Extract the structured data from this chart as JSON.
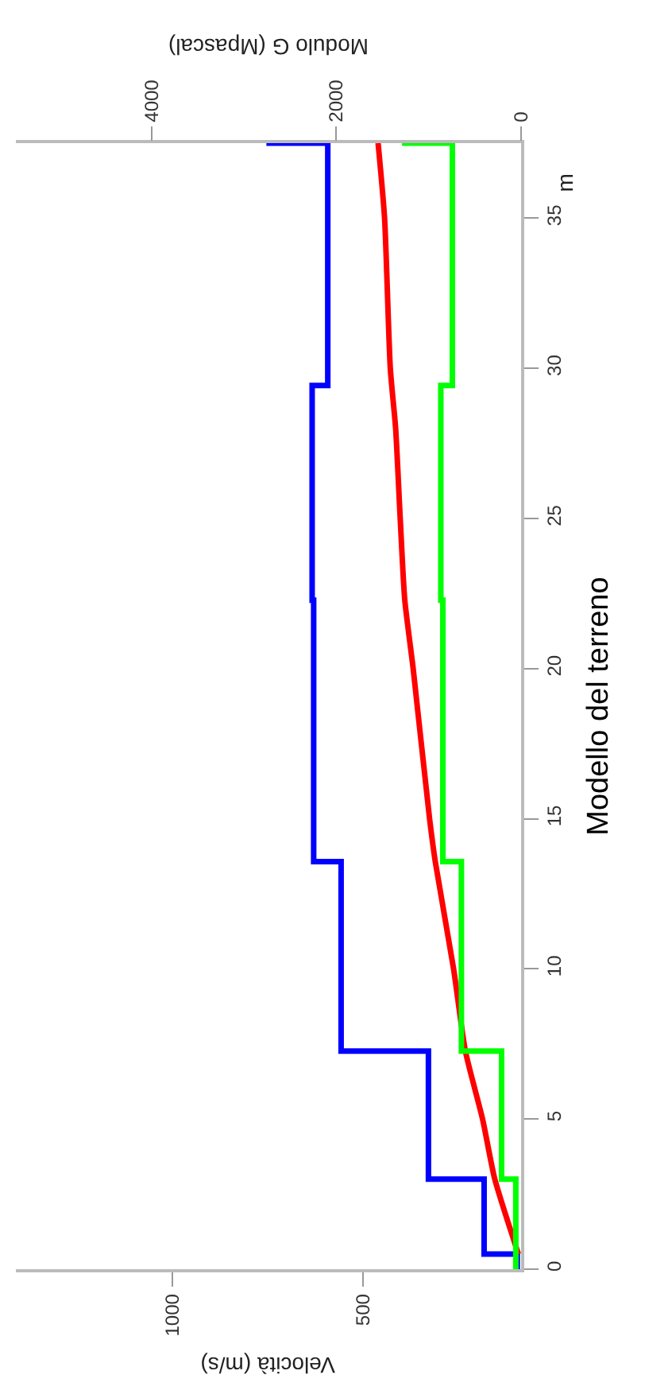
{
  "chart_data": {
    "type": "step",
    "xlabel": "Velocità (m/s)",
    "x2label": "Modulo G (Mpascal)",
    "ylabel": "Modello del terreno",
    "annotations": [
      "m"
    ],
    "xlim": [
      1410,
      85
    ],
    "xticks": [
      1000,
      500
    ],
    "x2lim": [
      5470,
      0
    ],
    "x2ticks": [
      4000,
      2000,
      0
    ],
    "ylim": [
      0,
      37.5
    ],
    "yticks": [
      0,
      5,
      10,
      15,
      20,
      25,
      30,
      35
    ],
    "grid": false,
    "marker": "none",
    "line_style": "solid",
    "series": [
      {
        "color": "#0000ff",
        "x": [
          95,
          182,
          328,
          557,
          629,
          633,
          592,
          753
        ],
        "values": [
          0,
          0.5,
          3,
          7.26,
          13.57,
          22.28,
          29.43,
          37.5
        ]
      },
      {
        "color": "#00ff00",
        "axis": "x2",
        "x": [
          57,
          211,
          646,
          847,
          869,
          744,
          1289
        ],
        "values": [
          0,
          3,
          7.26,
          13.57,
          22.28,
          29.43,
          37.5
        ]
      },
      {
        "type": "line",
        "color": "#ff0000",
        "x": [
          92,
          154,
          186,
          231,
          262,
          310,
          325,
          368,
          390,
          402,
          414,
          428,
          443,
          460
        ],
        "values": [
          0.5,
          3,
          5,
          7.26,
          10,
          13.57,
          15,
          20,
          22.28,
          25,
          28,
          30,
          35,
          37.5
        ]
      }
    ]
  }
}
